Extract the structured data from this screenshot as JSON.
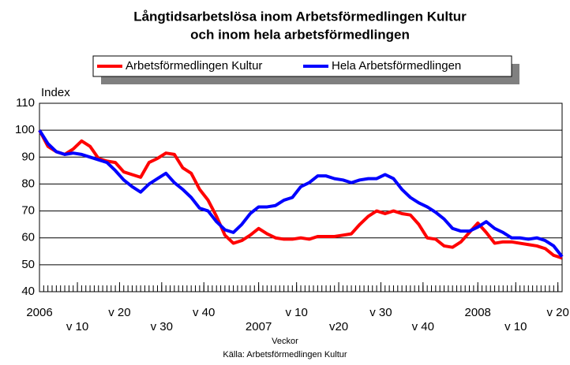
{
  "chart_data": {
    "type": "line",
    "title": [
      "Långtidsarbetslösa inom Arbetsförmedlingen Kultur",
      "och inom hela arbetsförmedlingen"
    ],
    "y_label": "Index",
    "x_label": "Veckor",
    "source": "Källa: Arbetsförmedlingen Kultur",
    "x": [
      0,
      2,
      4,
      6,
      8,
      10,
      12,
      14,
      16,
      18,
      20,
      22,
      24,
      26,
      28,
      30,
      32,
      34,
      36,
      38,
      40,
      42,
      44,
      46,
      48,
      50,
      52,
      54,
      56,
      58,
      60,
      62,
      64,
      66,
      68,
      70,
      72,
      74,
      76,
      78,
      80,
      82,
      84,
      86,
      88,
      90,
      92,
      94,
      96,
      98,
      100,
      102,
      104,
      106,
      108,
      110,
      112,
      114,
      116,
      118,
      120,
      122,
      124
    ],
    "series": [
      {
        "name": "Arbetsförmedlingen Kultur",
        "color": "#ff0000",
        "values": [
          100,
          94,
          92,
          91,
          93,
          96,
          94,
          89.5,
          88.5,
          88,
          84.5,
          83.5,
          82.5,
          88,
          89.5,
          91.5,
          91,
          86,
          84,
          78,
          74,
          68,
          61,
          58,
          59,
          61,
          63.5,
          61.5,
          60,
          59.5,
          59.5,
          60,
          59.5,
          60.5,
          60.5,
          60.5,
          61,
          61.5,
          65,
          68,
          70,
          69,
          70,
          69,
          68.5,
          65,
          60,
          59.5,
          57,
          56.5,
          58.5,
          62,
          65.5,
          62,
          58,
          58.5,
          58.5,
          58,
          57.5,
          57,
          56,
          53.5,
          52.5
        ]
      },
      {
        "name": "Hela Arbetsförmedlingen",
        "color": "#0000ff",
        "values": [
          100,
          95,
          92,
          91,
          91.5,
          91,
          90,
          89,
          88,
          85,
          81.5,
          79,
          77,
          80,
          82,
          84,
          80.5,
          78,
          75,
          71,
          70,
          66,
          63,
          62,
          65,
          69,
          71.5,
          71.5,
          72,
          74,
          75,
          79,
          80.5,
          83,
          83,
          82,
          81.5,
          80.5,
          81.5,
          82,
          82,
          83.5,
          82,
          78,
          75,
          73,
          71.5,
          69.5,
          67,
          63.5,
          62.5,
          62.5,
          64,
          66,
          63.5,
          62,
          60,
          60,
          59.5,
          60,
          59,
          57,
          53
        ]
      }
    ],
    "xlim": [
      0,
      124
    ],
    "xticks": [
      {
        "value": 0,
        "label": "2006"
      },
      {
        "value": 9,
        "label": "v 10"
      },
      {
        "value": 19,
        "label": "v 20"
      },
      {
        "value": 29,
        "label": "v 30"
      },
      {
        "value": 39,
        "label": "v 40"
      },
      {
        "value": 52,
        "label": "2007"
      },
      {
        "value": 61,
        "label": "v 10"
      },
      {
        "value": 71,
        "label": "v20"
      },
      {
        "value": 81,
        "label": "v 30"
      },
      {
        "value": 91,
        "label": "v 40"
      },
      {
        "value": 104,
        "label": "2008"
      },
      {
        "value": 113,
        "label": "v 10"
      },
      {
        "value": 123,
        "label": "v 20"
      }
    ],
    "ylim": [
      40,
      110
    ],
    "yticks": [
      40,
      50,
      60,
      70,
      80,
      90,
      100,
      110
    ],
    "grid": true
  }
}
